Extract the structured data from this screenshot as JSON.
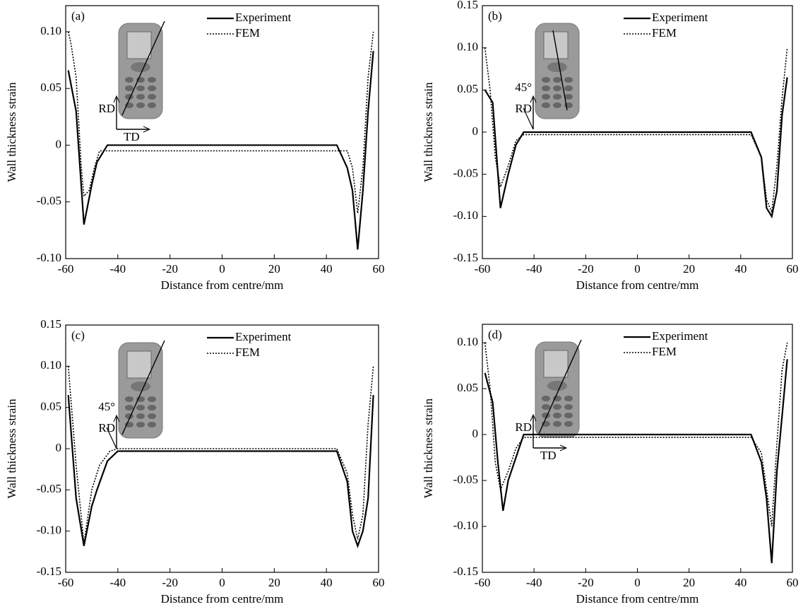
{
  "chart_data": [
    {
      "type": "line",
      "title": "(a)",
      "xlabel": "Distance from centre/mm",
      "ylabel": "Wall thickness strain",
      "xlim": [
        -60,
        60
      ],
      "xticks": [
        -60,
        -40,
        -20,
        0,
        20,
        40,
        60
      ],
      "ylim": [
        -0.1,
        0.123
      ],
      "yticks": [
        {
          "value": -0.1,
          "label": "-0.10"
        },
        -0.05,
        0,
        0.05,
        {
          "value": 0.1,
          "label": "0.10"
        }
      ],
      "annotations": [
        "RD",
        "TD"
      ],
      "series": [
        {
          "name": "Experiment",
          "color": "#000000",
          "dash": "solid",
          "x": [
            -59,
            -56,
            -53,
            -50,
            -48,
            -44,
            44,
            48,
            50,
            52,
            54,
            56,
            58
          ],
          "values": [
            0.066,
            0.03,
            -0.07,
            -0.035,
            -0.015,
            0,
            0,
            -0.02,
            -0.04,
            -0.092,
            -0.04,
            0.03,
            0.083
          ]
        },
        {
          "name": "FEM",
          "color": "#000000",
          "dash": "dotted",
          "x": [
            -59,
            -58,
            -56,
            -54,
            -53,
            -51,
            -49,
            -47,
            48,
            50,
            52,
            54,
            56,
            58
          ],
          "values": [
            0.1,
            0.09,
            0.06,
            -0.02,
            -0.045,
            -0.04,
            -0.02,
            -0.005,
            -0.005,
            -0.02,
            -0.06,
            -0.02,
            0.06,
            0.1
          ]
        }
      ]
    },
    {
      "type": "line",
      "title": "(b)",
      "xlabel": "Distance from centre/mm",
      "ylabel": "Wall thickness strain",
      "xlim": [
        -60,
        60
      ],
      "xticks": [
        -60,
        -40,
        -20,
        0,
        20,
        40,
        60
      ],
      "ylim": [
        -0.15,
        0.15
      ],
      "yticks": [
        -0.15,
        {
          "value": -0.1,
          "label": "-0.10"
        },
        -0.05,
        0,
        0.05,
        {
          "value": 0.1,
          "label": "0.10"
        },
        0.15
      ],
      "annotations": [
        "RD",
        "45°"
      ],
      "series": [
        {
          "name": "Experiment",
          "color": "#000000",
          "dash": "solid",
          "x": [
            -59,
            -56,
            -53,
            -50,
            -47,
            -44,
            44,
            48,
            50,
            52,
            54,
            56,
            58
          ],
          "values": [
            0.05,
            0.035,
            -0.09,
            -0.05,
            -0.015,
            0,
            0,
            -0.03,
            -0.09,
            -0.1,
            -0.07,
            0.02,
            0.065
          ]
        },
        {
          "name": "FEM",
          "color": "#000000",
          "dash": "dotted",
          "x": [
            -59,
            -57,
            -55,
            -53,
            -50,
            -47,
            -44,
            44,
            48,
            50,
            52,
            54,
            56,
            58
          ],
          "values": [
            0.1,
            0.05,
            -0.03,
            -0.065,
            -0.04,
            -0.01,
            -0.003,
            -0.003,
            -0.03,
            -0.08,
            -0.095,
            -0.04,
            0.04,
            0.1
          ]
        }
      ]
    },
    {
      "type": "line",
      "title": "(c)",
      "xlabel": "Distance from centre/mm",
      "ylabel": "Wall thickness strain",
      "xlim": [
        -60,
        60
      ],
      "xticks": [
        -60,
        -40,
        -20,
        0,
        20,
        40,
        60
      ],
      "ylim": [
        -0.15,
        0.15
      ],
      "yticks": [
        -0.15,
        {
          "value": -0.1,
          "label": "-0.10"
        },
        -0.05,
        0,
        0.05,
        {
          "value": 0.1,
          "label": "0.10"
        },
        0.15
      ],
      "annotations": [
        "RD",
        "45°"
      ],
      "series": [
        {
          "name": "Experiment",
          "color": "#000000",
          "dash": "solid",
          "x": [
            -59,
            -56,
            -53,
            -50,
            -48,
            -44,
            -40,
            44,
            48,
            50,
            52,
            54,
            56,
            58
          ],
          "values": [
            0.065,
            -0.06,
            -0.118,
            -0.07,
            -0.05,
            -0.015,
            -0.003,
            -0.003,
            -0.04,
            -0.1,
            -0.118,
            -0.1,
            -0.06,
            0.065
          ]
        },
        {
          "name": "FEM",
          "color": "#000000",
          "dash": "dotted",
          "x": [
            -59,
            -56,
            -53,
            -50,
            -47,
            -43,
            -40,
            44,
            48,
            50,
            52,
            54,
            56,
            58
          ],
          "values": [
            0.1,
            -0.02,
            -0.115,
            -0.05,
            -0.02,
            -0.003,
            0,
            0,
            -0.03,
            -0.08,
            -0.11,
            -0.08,
            0.03,
            0.1
          ]
        }
      ]
    },
    {
      "type": "line",
      "title": "(d)",
      "xlabel": "Distance from centre/mm",
      "ylabel": "Wall thickness strain",
      "xlim": [
        -60,
        60
      ],
      "xticks": [
        -60,
        -40,
        -20,
        0,
        20,
        40,
        60
      ],
      "ylim": [
        -0.15,
        0.12
      ],
      "yticks": [
        -0.15,
        {
          "value": -0.1,
          "label": "-0.10"
        },
        -0.05,
        0,
        0.05,
        {
          "value": 0.1,
          "label": "0.10"
        }
      ],
      "annotations": [
        "RD",
        "TD"
      ],
      "series": [
        {
          "name": "Experiment",
          "color": "#000000",
          "dash": "solid",
          "x": [
            -59,
            -56,
            -54,
            -52,
            -50,
            -47,
            -44,
            44,
            48,
            50,
            52,
            54,
            56,
            58
          ],
          "values": [
            0.067,
            0.035,
            -0.03,
            -0.083,
            -0.05,
            -0.025,
            0,
            0,
            -0.03,
            -0.07,
            -0.14,
            -0.04,
            0.02,
            0.082
          ]
        },
        {
          "name": "FEM",
          "color": "#000000",
          "dash": "dotted",
          "x": [
            -59,
            -57,
            -55,
            -53,
            -50,
            -47,
            -44,
            44,
            48,
            50,
            52,
            54,
            56,
            58
          ],
          "values": [
            0.1,
            0.05,
            -0.03,
            -0.06,
            -0.04,
            -0.015,
            -0.003,
            -0.003,
            -0.02,
            -0.06,
            -0.1,
            -0.01,
            0.07,
            0.1
          ]
        }
      ]
    }
  ]
}
